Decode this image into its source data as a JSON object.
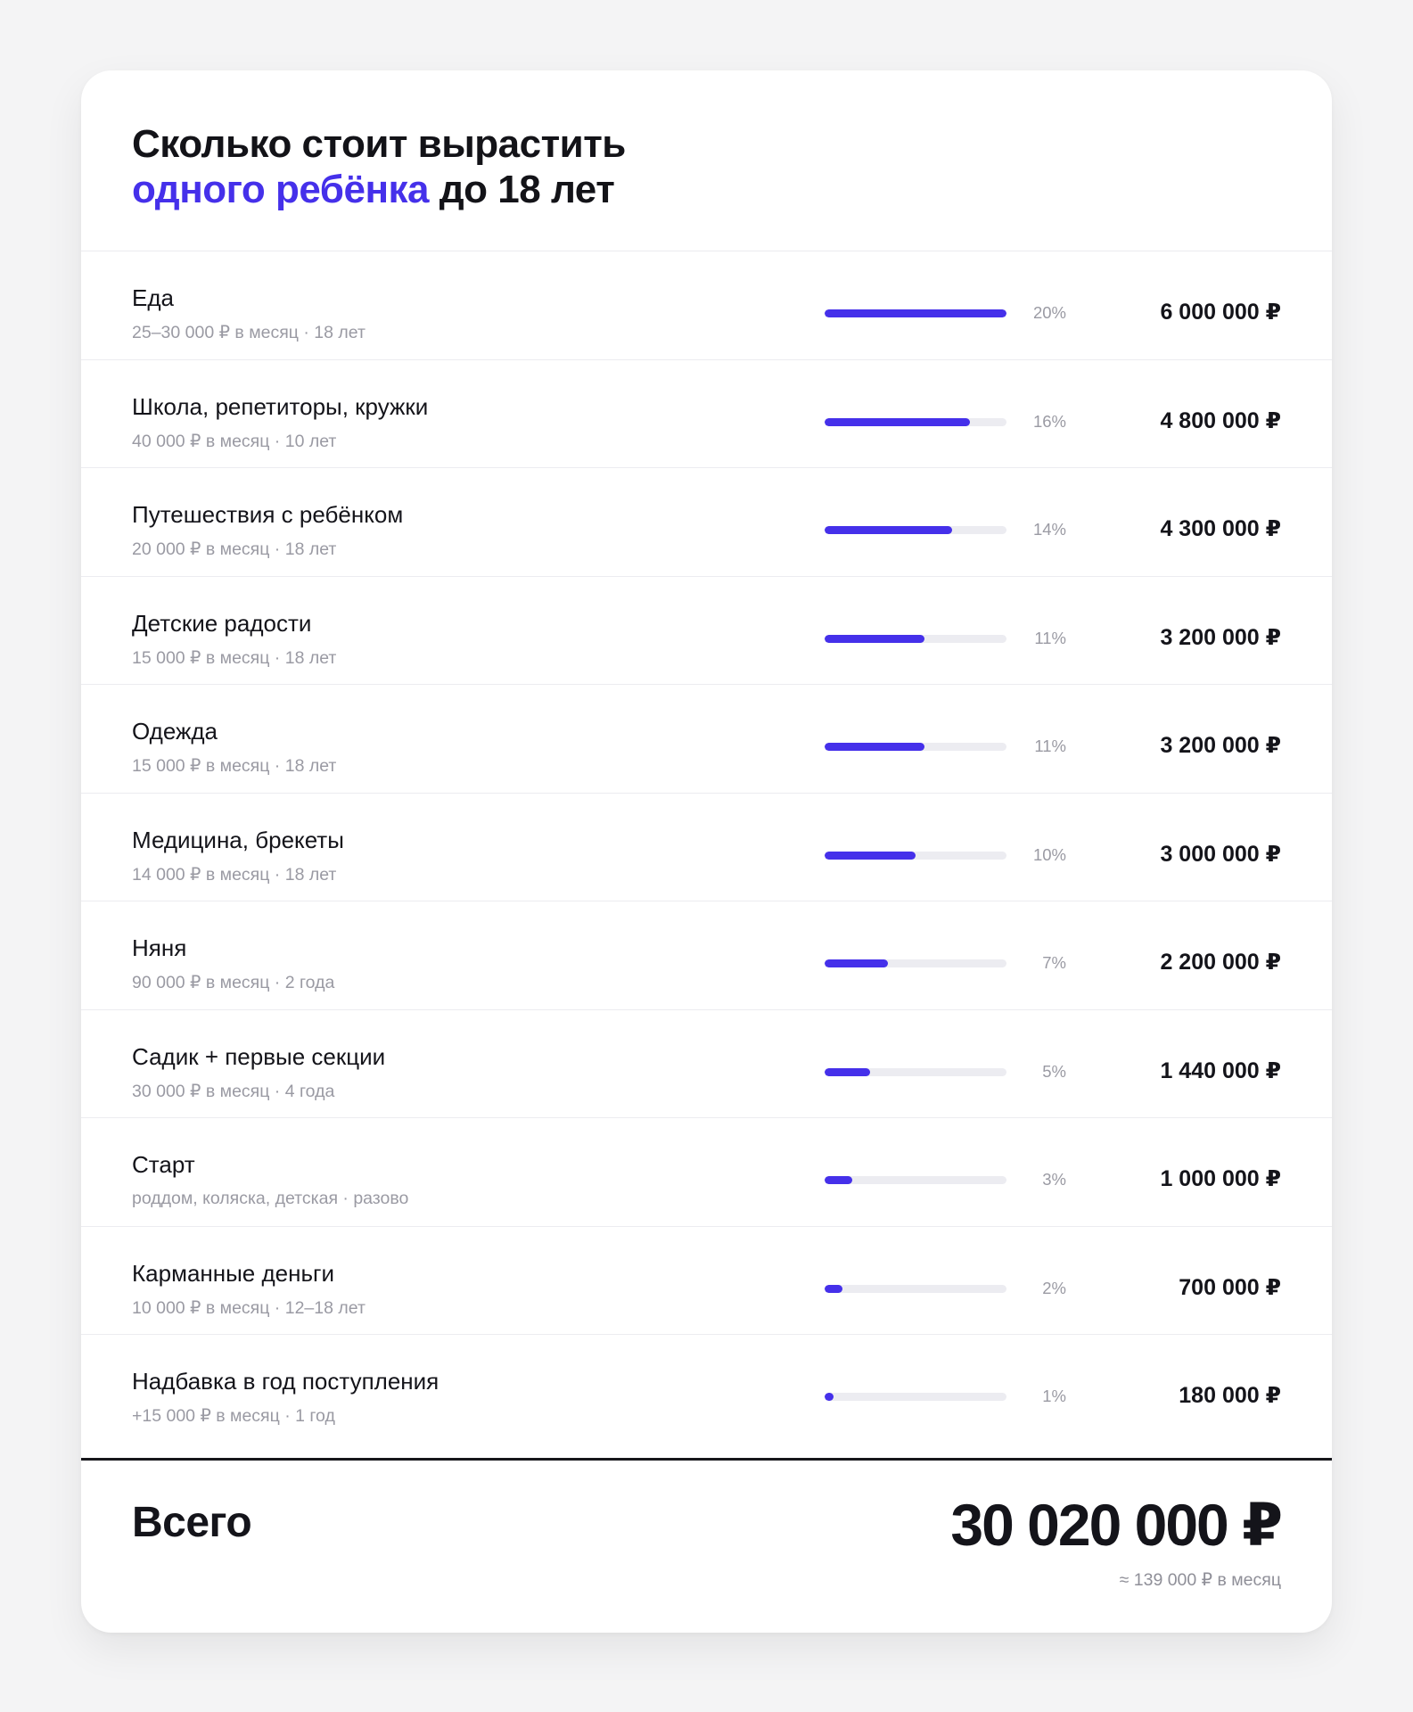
{
  "header": {
    "title_line1": "Сколько стоит вырастить",
    "title_accent": "одного ребёнка",
    "title_rest": " до 18 лет"
  },
  "rows": [
    {
      "name": "Еда",
      "note": "25–30 000 ₽ в месяц · 18 лет",
      "pct_label": "20%",
      "share": 0.2,
      "amount": "6 000 000 ₽"
    },
    {
      "name": "Школа, репетиторы, кружки",
      "note": "40 000 ₽ в месяц · 10 лет",
      "pct_label": "16%",
      "share": 0.16,
      "amount": "4 800 000 ₽"
    },
    {
      "name": "Путешествия с ребёнком",
      "note": "20 000 ₽ в месяц · 18 лет",
      "pct_label": "14%",
      "share": 0.14,
      "amount": "4 300 000 ₽"
    },
    {
      "name": "Детские радости",
      "note": "15 000 ₽ в месяц · 18 лет",
      "pct_label": "11%",
      "share": 0.11,
      "amount": "3 200 000 ₽"
    },
    {
      "name": "Одежда",
      "note": "15 000 ₽ в месяц · 18 лет",
      "pct_label": "11%",
      "share": 0.11,
      "amount": "3 200 000 ₽"
    },
    {
      "name": "Медицина, брекеты",
      "note": "14 000 ₽ в месяц · 18 лет",
      "pct_label": "10%",
      "share": 0.1,
      "amount": "3 000 000 ₽"
    },
    {
      "name": "Няня",
      "note": "90 000 ₽ в месяц · 2 года",
      "pct_label": "7%",
      "share": 0.07,
      "amount": "2 200 000 ₽"
    },
    {
      "name": "Садик + первые секции",
      "note": "30 000 ₽ в месяц · 4 года",
      "pct_label": "5%",
      "share": 0.05,
      "amount": "1 440 000 ₽"
    },
    {
      "name": "Старт",
      "note": "роддом, коляска, детская · разово",
      "pct_label": "3%",
      "share": 0.03,
      "amount": "1 000 000 ₽"
    },
    {
      "name": "Карманные деньги",
      "note": "10 000 ₽ в месяц · 12–18 лет",
      "pct_label": "2%",
      "share": 0.02,
      "amount": "700 000 ₽"
    },
    {
      "name": "Надбавка в год поступления",
      "note": "+15 000 ₽ в месяц · 1 год",
      "pct_label": "1%",
      "share": 0.01,
      "amount": "180 000 ₽"
    }
  ],
  "footer": {
    "total_label": "Всего",
    "total_value": "30 020 000 ₽",
    "monthly": "≈ 139 000 ₽ в месяц"
  },
  "colors": {
    "accent": "#4530ea",
    "track": "#ececf1",
    "text": "#14141a",
    "muted": "#9a9aa3"
  }
}
